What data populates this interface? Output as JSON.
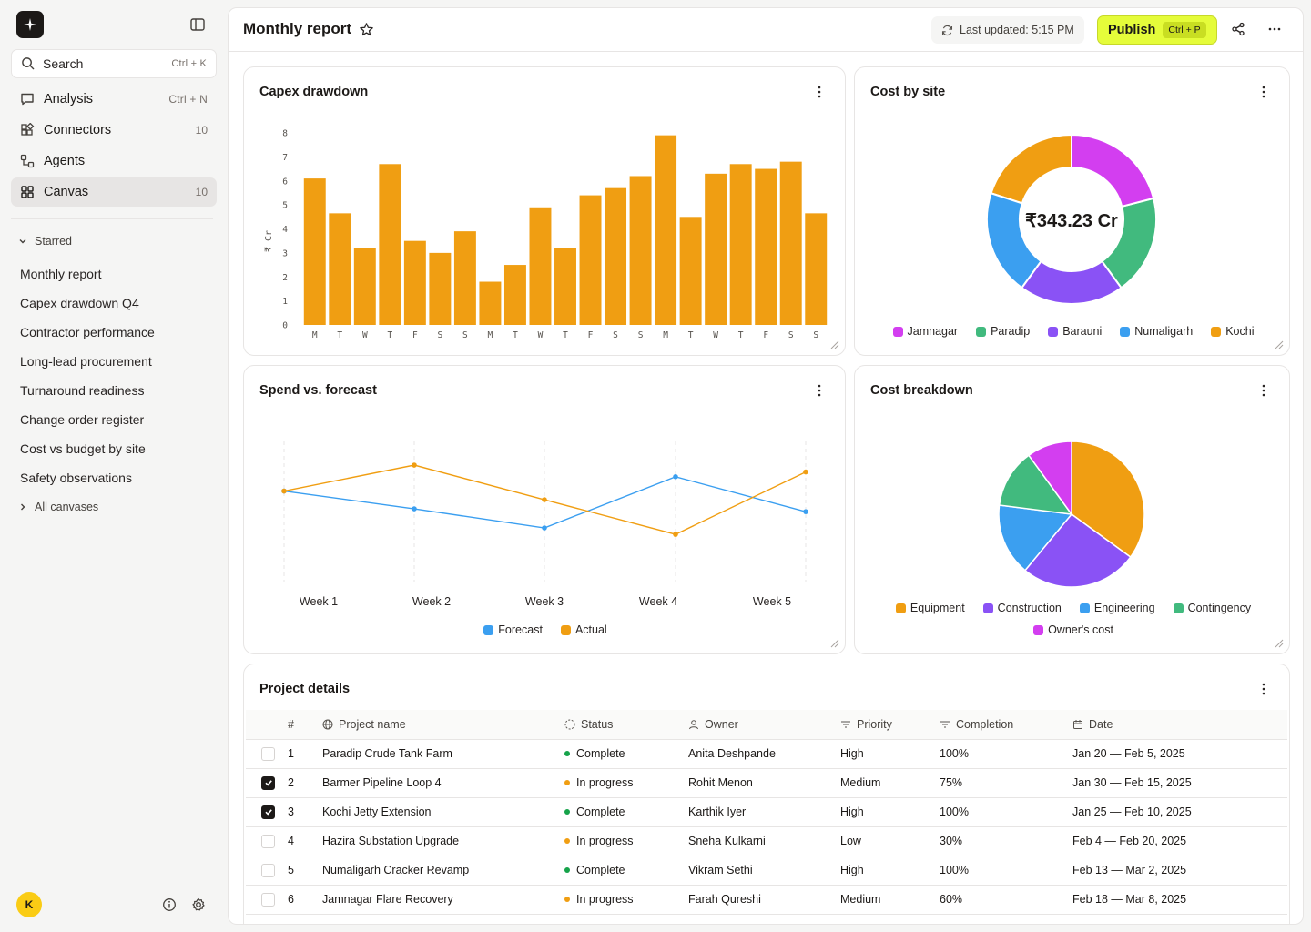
{
  "sidebar": {
    "search": {
      "label": "Search",
      "shortcut": "Ctrl + K"
    },
    "nav": [
      {
        "label": "Analysis",
        "meta": "Ctrl + N"
      },
      {
        "label": "Connectors",
        "meta": "10"
      },
      {
        "label": "Agents",
        "meta": ""
      },
      {
        "label": "Canvas",
        "meta": "10",
        "active": true
      }
    ],
    "starred_heading": "Starred",
    "starred": [
      "Monthly report",
      "Capex drawdown Q4",
      "Contractor performance",
      "Long-lead procurement",
      "Turnaround readiness",
      "Change order register",
      "Cost vs budget by site",
      "Safety observations"
    ],
    "all_canvases": "All canvases",
    "user_initial": "K"
  },
  "header": {
    "title": "Monthly report",
    "last_updated_label": "Last updated:",
    "last_updated_time": "5:15 PM",
    "publish_label": "Publish",
    "publish_shortcut": "Ctrl + P"
  },
  "cards": {
    "capex_title": "Capex drawdown",
    "cost_site_title": "Cost by site",
    "spend_title": "Spend vs. forecast",
    "breakdown_title": "Cost breakdown",
    "table_title": "Project details"
  },
  "colors": {
    "orange": "#f09e12",
    "magenta": "#d33ef0",
    "green": "#41ba7e",
    "purple": "#8a52f5",
    "blue": "#3b9ff0",
    "accent": "#e5fc3a"
  },
  "chart_data": [
    {
      "type": "bar",
      "title": "Capex drawdown",
      "ylabel": "₹ Cr",
      "categories": [
        "M",
        "T",
        "W",
        "T",
        "F",
        "S",
        "S",
        "M",
        "T",
        "W",
        "T",
        "F",
        "S",
        "S",
        "M",
        "T",
        "W",
        "T",
        "F",
        "S",
        "S"
      ],
      "values": [
        6.1,
        4.65,
        3.2,
        6.7,
        3.5,
        3.0,
        3.9,
        1.8,
        2.5,
        4.9,
        3.2,
        5.4,
        5.7,
        6.2,
        7.9,
        4.5,
        6.3,
        6.7,
        6.5,
        6.8,
        4.65
      ],
      "yticks": [
        0,
        1,
        2,
        3,
        4,
        5,
        6,
        7,
        8
      ],
      "ylim": [
        0,
        8
      ]
    },
    {
      "type": "pie",
      "title": "Cost by site",
      "center_label": "₹343.23 Cr",
      "labels": [
        "Jamnagar",
        "Paradip",
        "Barauni",
        "Numaligarh",
        "Kochi"
      ],
      "values": [
        21,
        19,
        20,
        20,
        20
      ],
      "colors": [
        "#d33ef0",
        "#41ba7e",
        "#8a52f5",
        "#3b9ff0",
        "#f09e12"
      ]
    },
    {
      "type": "line",
      "title": "Spend vs. forecast",
      "categories": [
        "Week 1",
        "Week 2",
        "Week 3",
        "Week 4",
        "Week 5"
      ],
      "ylim": [
        0,
        10
      ],
      "series": [
        {
          "name": "Forecast",
          "color": "#3b9ff0",
          "values": [
            6.46,
            5.19,
            3.83,
            7.48,
            4.99
          ]
        },
        {
          "name": "Actual",
          "color": "#f09e12",
          "values": [
            6.46,
            8.31,
            5.84,
            3.37,
            7.82
          ]
        }
      ]
    },
    {
      "type": "pie",
      "title": "Cost breakdown",
      "labels": [
        "Equipment",
        "Construction",
        "Engineering",
        "Contingency",
        "Owner's cost"
      ],
      "values": [
        35,
        26,
        16,
        13,
        10
      ],
      "colors": [
        "#f09e12",
        "#8a52f5",
        "#3b9ff0",
        "#41ba7e",
        "#d33ef0"
      ]
    }
  ],
  "table": {
    "columns": [
      "#",
      "Project name",
      "Status",
      "Owner",
      "Priority",
      "Completion",
      "Date"
    ],
    "rows": [
      {
        "checked": false,
        "num": "1",
        "name": "Paradip Crude Tank Farm",
        "status": "Complete",
        "owner": "Anita Deshpande",
        "priority": "High",
        "completion": "100%",
        "date": "Jan 20 — Feb 5, 2025"
      },
      {
        "checked": true,
        "num": "2",
        "name": "Barmer Pipeline Loop 4",
        "status": "In progress",
        "owner": "Rohit Menon",
        "priority": "Medium",
        "completion": "75%",
        "date": "Jan 30 — Feb 15, 2025"
      },
      {
        "checked": true,
        "num": "3",
        "name": "Kochi Jetty Extension",
        "status": "Complete",
        "owner": "Karthik Iyer",
        "priority": "High",
        "completion": "100%",
        "date": "Jan 25 — Feb 10, 2025"
      },
      {
        "checked": false,
        "num": "4",
        "name": "Hazira Substation Upgrade",
        "status": "In progress",
        "owner": "Sneha Kulkarni",
        "priority": "Low",
        "completion": "30%",
        "date": "Feb 4 — Feb 20, 2025"
      },
      {
        "checked": false,
        "num": "5",
        "name": "Numaligarh Cracker Revamp",
        "status": "Complete",
        "owner": "Vikram Sethi",
        "priority": "High",
        "completion": "100%",
        "date": "Feb 13 — Mar 2, 2025"
      },
      {
        "checked": false,
        "num": "6",
        "name": "Jamnagar Flare Recovery",
        "status": "In progress",
        "owner": "Farah Qureshi",
        "priority": "Medium",
        "completion": "60%",
        "date": "Feb 18 — Mar 8, 2025"
      }
    ]
  }
}
